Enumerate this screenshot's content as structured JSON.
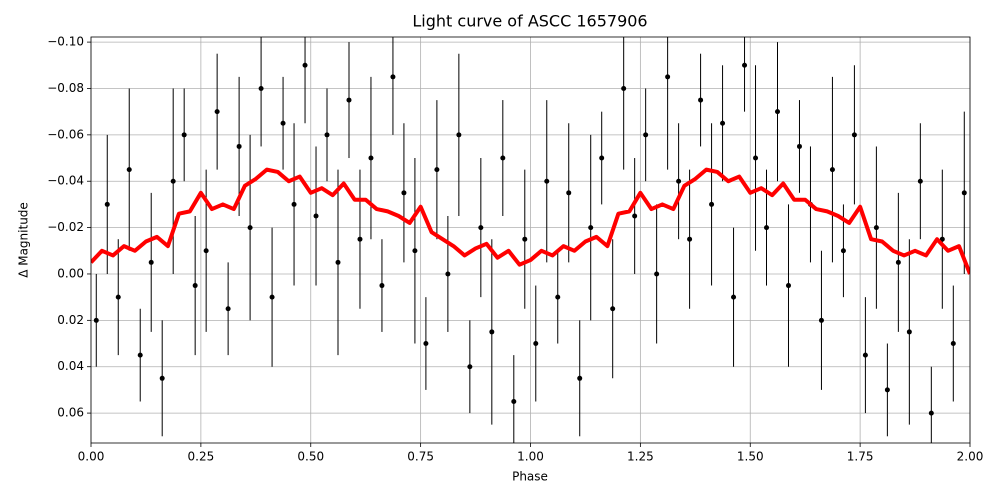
{
  "chart_data": {
    "type": "scatter-errorbar-line",
    "title": "Light curve of ASCC 1657906",
    "x_label": "Phase",
    "y_label": "Δ Magnitude",
    "xlim": [
      0,
      2
    ],
    "ylim": [
      -0.1022,
      0.0729
    ],
    "y_inverted": true,
    "grid": true,
    "xticks": [
      {
        "value": 0,
        "label": "0.00"
      },
      {
        "value": 0.25,
        "label": "0.25"
      },
      {
        "value": 0.5,
        "label": "0.50"
      },
      {
        "value": 0.75,
        "label": "0.75"
      },
      {
        "value": 1,
        "label": "1.00"
      },
      {
        "value": 1.25,
        "label": "1.25"
      },
      {
        "value": 1.5,
        "label": "1.50"
      },
      {
        "value": 1.75,
        "label": "1.75"
      },
      {
        "value": 2,
        "label": "2.00"
      }
    ],
    "yticks": [
      {
        "value": -0.1,
        "label": "−0.10"
      },
      {
        "value": -0.08,
        "label": "−0.08"
      },
      {
        "value": -0.06,
        "label": "−0.06"
      },
      {
        "value": -0.04,
        "label": "−0.04"
      },
      {
        "value": -0.02,
        "label": "−0.02"
      },
      {
        "value": 0,
        "label": "0.00"
      },
      {
        "value": 0.02,
        "label": "0.02"
      },
      {
        "value": 0.04,
        "label": "0.04"
      },
      {
        "value": 0.06,
        "label": "0.06"
      }
    ],
    "points": {
      "color": "#000000",
      "x": [
        0.012,
        0.037,
        0.062,
        0.087,
        0.112,
        0.137,
        0.162,
        0.187,
        0.212,
        0.237,
        0.262,
        0.287,
        0.312,
        0.337,
        0.362,
        0.387,
        0.412,
        0.437,
        0.462,
        0.487,
        0.512,
        0.537,
        0.562,
        0.587,
        0.612,
        0.637,
        0.662,
        0.687,
        0.712,
        0.737,
        0.762,
        0.787,
        0.812,
        0.837,
        0.862,
        0.887,
        0.912,
        0.937,
        0.962,
        0.987,
        1.012,
        1.037,
        1.062,
        1.087,
        1.112,
        1.137,
        1.162,
        1.187,
        1.212,
        1.237,
        1.262,
        1.287,
        1.312,
        1.337,
        1.362,
        1.387,
        1.412,
        1.437,
        1.462,
        1.487,
        1.512,
        1.537,
        1.562,
        1.587,
        1.612,
        1.637,
        1.662,
        1.687,
        1.712,
        1.737,
        1.762,
        1.787,
        1.812,
        1.837,
        1.862,
        1.887,
        1.912,
        1.937,
        1.962,
        1.987
      ],
      "values": [
        0.02,
        -0.03,
        0.01,
        -0.045,
        0.035,
        -0.005,
        0.045,
        -0.04,
        -0.06,
        0.005,
        -0.01,
        -0.07,
        0.015,
        -0.055,
        -0.02,
        -0.08,
        0.01,
        -0.065,
        -0.03,
        -0.09,
        -0.025,
        -0.06,
        -0.005,
        -0.075,
        -0.015,
        -0.05,
        0.005,
        -0.085,
        -0.035,
        -0.01,
        0.03,
        -0.045,
        0,
        -0.06,
        0.04,
        -0.02,
        0.025,
        -0.05,
        0.055,
        -0.015,
        0.03,
        -0.04,
        0.01,
        -0.035,
        0.045,
        -0.02,
        -0.05,
        0.015,
        -0.08,
        -0.025,
        -0.06,
        0,
        -0.085,
        -0.04,
        -0.015,
        -0.075,
        -0.03,
        -0.065,
        0.01,
        -0.09,
        -0.05,
        -0.02,
        -0.07,
        0.005,
        -0.055,
        -0.03,
        0.02,
        -0.045,
        -0.01,
        -0.06,
        0.035,
        -0.02,
        0.05,
        -0.005,
        0.025,
        -0.04,
        0.06,
        -0.015,
        0.03,
        -0.035
      ],
      "errors": [
        0.02,
        0.03,
        0.025,
        0.035,
        0.02,
        0.03,
        0.025,
        0.04,
        0.02,
        0.03,
        0.035,
        0.025,
        0.02,
        0.03,
        0.04,
        0.025,
        0.03,
        0.02,
        0.035,
        0.025,
        0.03,
        0.02,
        0.04,
        0.025,
        0.03,
        0.035,
        0.02,
        0.025,
        0.03,
        0.04,
        0.02,
        0.03,
        0.025,
        0.035,
        0.02,
        0.03,
        0.04,
        0.025,
        0.02,
        0.03,
        0.025,
        0.035,
        0.02,
        0.03,
        0.025,
        0.04,
        0.02,
        0.03,
        0.035,
        0.025,
        0.02,
        0.03,
        0.04,
        0.025,
        0.03,
        0.02,
        0.035,
        0.025,
        0.03,
        0.02,
        0.04,
        0.025,
        0.03,
        0.035,
        0.02,
        0.025,
        0.03,
        0.04,
        0.02,
        0.03,
        0.025,
        0.035,
        0.02,
        0.03,
        0.04,
        0.025,
        0.02,
        0.03,
        0.025,
        0.035
      ]
    },
    "smooth": {
      "color": "#ff0000",
      "x": [
        0,
        0.025,
        0.05,
        0.075,
        0.1,
        0.125,
        0.15,
        0.175,
        0.2,
        0.225,
        0.25,
        0.275,
        0.3,
        0.325,
        0.35,
        0.375,
        0.4,
        0.425,
        0.45,
        0.475,
        0.5,
        0.525,
        0.55,
        0.575,
        0.6,
        0.625,
        0.65,
        0.675,
        0.7,
        0.725,
        0.75,
        0.775,
        0.8,
        0.825,
        0.85,
        0.875,
        0.9,
        0.925,
        0.95,
        0.975,
        1,
        1.025,
        1.05,
        1.075,
        1.1,
        1.125,
        1.15,
        1.175,
        1.2,
        1.225,
        1.25,
        1.275,
        1.3,
        1.325,
        1.35,
        1.375,
        1.4,
        1.425,
        1.45,
        1.475,
        1.5,
        1.525,
        1.55,
        1.575,
        1.6,
        1.625,
        1.65,
        1.675,
        1.7,
        1.725,
        1.75,
        1.775,
        1.8,
        1.825,
        1.85,
        1.875,
        1.9,
        1.925,
        1.95,
        1.975,
        2
      ],
      "values": [
        -0.005,
        -0.01,
        -0.008,
        -0.012,
        -0.01,
        -0.014,
        -0.016,
        -0.012,
        -0.026,
        -0.027,
        -0.035,
        -0.028,
        -0.03,
        -0.028,
        -0.038,
        -0.041,
        -0.045,
        -0.044,
        -0.04,
        -0.042,
        -0.035,
        -0.037,
        -0.034,
        -0.039,
        -0.032,
        -0.032,
        -0.028,
        -0.027,
        -0.025,
        -0.022,
        -0.029,
        -0.018,
        -0.015,
        -0.012,
        -0.008,
        -0.011,
        -0.013,
        -0.007,
        -0.01,
        -0.004,
        -0.006,
        -0.01,
        -0.008,
        -0.012,
        -0.01,
        -0.014,
        -0.016,
        -0.012,
        -0.026,
        -0.027,
        -0.035,
        -0.028,
        -0.03,
        -0.028,
        -0.038,
        -0.041,
        -0.045,
        -0.044,
        -0.04,
        -0.042,
        -0.035,
        -0.037,
        -0.034,
        -0.039,
        -0.032,
        -0.032,
        -0.028,
        -0.027,
        -0.025,
        -0.022,
        -0.029,
        -0.015,
        -0.014,
        -0.01,
        -0.008,
        -0.01,
        -0.008,
        -0.015,
        -0.01,
        -0.012,
        0
      ]
    }
  }
}
